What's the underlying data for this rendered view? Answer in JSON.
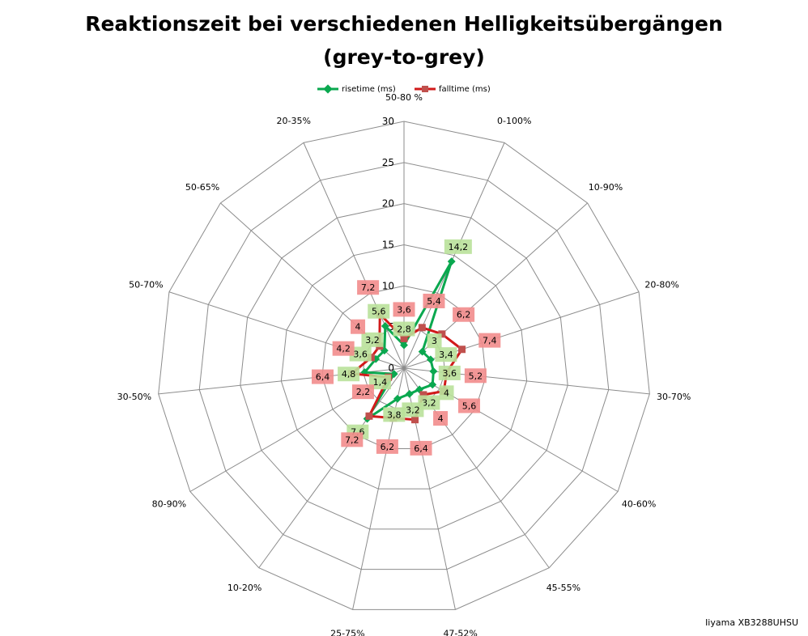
{
  "chart_data": {
    "type": "radar",
    "title": "Reaktionszeit bei verschiedenen Helligkeitsübergängen",
    "subtitle": "(grey-to-grey)",
    "categories": [
      "50-80 %",
      "0-100%",
      "10-90%",
      "20-80%",
      "30-70%",
      "40-60%",
      "45-55%",
      "47-52%",
      "25-75%",
      "10-20%",
      "80-90%",
      "30-50%",
      "50-70%",
      "50-65%",
      "20-35%"
    ],
    "ylim": [
      0,
      30
    ],
    "ticks": [
      "0",
      "5",
      "10",
      "15",
      "20",
      "25",
      "30"
    ],
    "tick_values": [
      0,
      5,
      10,
      15,
      20,
      25,
      30
    ],
    "grid": true,
    "legend": "top",
    "series": [
      {
        "name": "risetime (ms)",
        "color": "#0aa84f",
        "label_bg": "#b9e19a",
        "values": [
          2.8,
          14.2,
          3,
          3.4,
          3.6,
          4,
          3.2,
          3.2,
          3.8,
          7.6,
          1.4,
          4.8,
          3.6,
          3.2,
          5.6
        ],
        "labels": [
          "2,8",
          "14,2",
          "3",
          "3,4",
          "3,6",
          "4",
          "3,2",
          "3,2",
          "3,8",
          "7,6",
          "1,4",
          "4,8",
          "3,6",
          "3,2",
          "5,6"
        ]
      },
      {
        "name": "falltime (ms)",
        "color": "#d11a1a",
        "label_bg": "#f28c8c",
        "values": [
          3.6,
          5.4,
          6.2,
          7.4,
          5.2,
          5.6,
          4,
          6.4,
          6.2,
          7.2,
          2.2,
          6.4,
          4.2,
          4,
          7.2
        ],
        "labels": [
          "3,6",
          "5,4",
          "6,2",
          "7,4",
          "5,2",
          "5,6",
          "4",
          "6,4",
          "6,2",
          "7,2",
          "2,2",
          "6,4",
          "4,2",
          "4",
          "7,2"
        ]
      }
    ]
  },
  "footer": "Iiyama XB3288UHSU"
}
